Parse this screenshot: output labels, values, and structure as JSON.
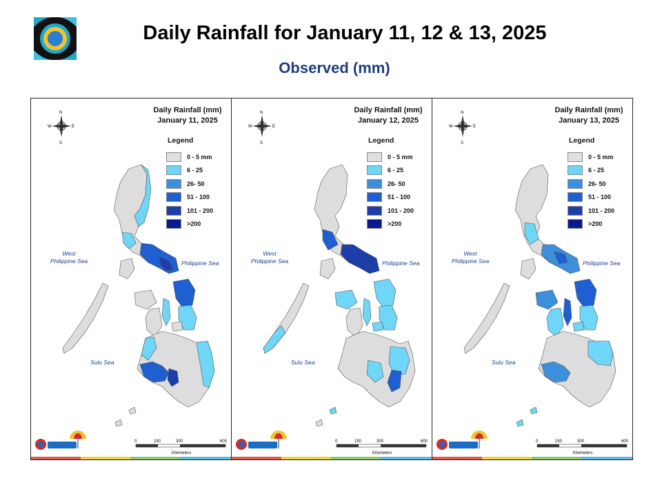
{
  "header": {
    "title": "Daily Rainfall for January 11, 12 & 13, 2025",
    "subtitle": "Observed (mm)"
  },
  "colors": {
    "title_sub": "#1f3d7a",
    "land": "#dddddd",
    "sea_label": "#1a3f8f",
    "bins": [
      "#e0e0e0",
      "#6fd6f7",
      "#3d8fdc",
      "#1e5fd2",
      "#1d3ea8",
      "#0a1a8c"
    ]
  },
  "legend": {
    "title": "Legend",
    "items": [
      "0 - 5 mm",
      "6 - 25",
      "26- 50",
      "51 - 100",
      "101 - 200",
      ">200"
    ]
  },
  "compass": {
    "n": "N",
    "s": "S",
    "e": "E",
    "w": "W"
  },
  "sea_labels": {
    "west": "West\nPhilippine Sea",
    "east": "Philippine Sea",
    "sulu": "Sulu Sea"
  },
  "scale": {
    "ticks": [
      "0",
      "150",
      "300",
      "600"
    ],
    "unit": "Kilometers"
  },
  "panels": [
    {
      "title_line1": "Daily Rainfall (mm)",
      "date": "January 11, 2025"
    },
    {
      "title_line1": "Daily Rainfall (mm)",
      "date": "January 12, 2025"
    },
    {
      "title_line1": "Daily Rainfall (mm)",
      "date": "January 13, 2025"
    }
  ]
}
